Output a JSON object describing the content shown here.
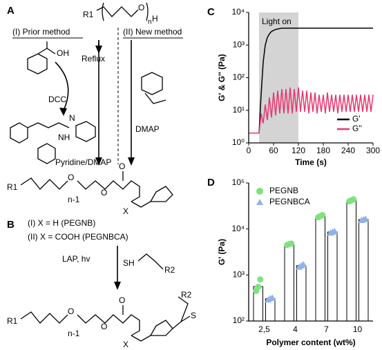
{
  "scheme": {
    "panel_a": "A",
    "panel_b": "B",
    "r1": "R1",
    "n": "n",
    "h": "H",
    "o": "O",
    "prior_method": "(I) Prior method",
    "new_method": "(II) New method",
    "reflux": "Reflux",
    "oh": "OH",
    "dcc": "DCC",
    "dmap": "DMAP",
    "pyridine_dmap": "Pyridine/DMAP",
    "n_minus_1": "n-1",
    "x": "X",
    "product_i": "(I) X = H (PEGNB)",
    "product_ii": "(II) X = COOH (PEGNBCA)",
    "lap": "LAP, hv",
    "sh": "SH",
    "r2": "R2",
    "s": "S",
    "nh": "NH",
    "nn": "N"
  },
  "chart_data": [
    {
      "type": "line",
      "panel": "C",
      "xlabel": "Time (s)",
      "ylabel": "G' & G'' (Pa)",
      "x": [
        0,
        5,
        10,
        15,
        20,
        25,
        30,
        35,
        40,
        45,
        50,
        55,
        60,
        65,
        70,
        75,
        80,
        85,
        90,
        95,
        100,
        105,
        110,
        115,
        120,
        125,
        130,
        135,
        140,
        145,
        150,
        155,
        160,
        165,
        170,
        175,
        180,
        185,
        190,
        195,
        200,
        205,
        210,
        215,
        220,
        225,
        230,
        235,
        240,
        245,
        250,
        255,
        260,
        265,
        270,
        275,
        280,
        285,
        290,
        295,
        300
      ],
      "xlim": [
        0,
        300
      ],
      "xticks": [
        0,
        60,
        120,
        180,
        240,
        300
      ],
      "ylim": [
        1,
        10000
      ],
      "log_y": true,
      "yticks": [
        {
          "value": 1,
          "label": "10⁰"
        },
        {
          "value": 10,
          "label": "10¹"
        },
        {
          "value": 100,
          "label": "10²"
        },
        {
          "value": 1000,
          "label": "10³"
        },
        {
          "value": 10000,
          "label": "10⁴"
        }
      ],
      "annotation": {
        "label": "Light on",
        "range": [
          25,
          120
        ]
      },
      "legend": "bottom-right",
      "series": [
        {
          "name": "G'",
          "color": "#000000",
          "values": [
            2,
            2,
            2,
            2,
            2,
            2,
            30,
            300,
            1000,
            1700,
            2200,
            2600,
            2800,
            3000,
            3100,
            3200,
            3300,
            3300,
            3300,
            3300,
            3300,
            3300,
            3300,
            3300,
            3300,
            3300,
            3300,
            3300,
            3300,
            3300,
            3300,
            3300,
            3300,
            3300,
            3300,
            3300,
            3300,
            3300,
            3300,
            3300,
            3300,
            3300,
            3300,
            3300,
            3300,
            3300,
            3300,
            3300,
            3300,
            3300,
            3300,
            3300,
            3300,
            3300,
            3300,
            3300,
            3300,
            3300,
            3300,
            3300,
            3300
          ]
        },
        {
          "name": "G''",
          "color": "#e8366e",
          "values": [
            2,
            2,
            2,
            2,
            2,
            2,
            8,
            4,
            15,
            5,
            25,
            6,
            35,
            7,
            40,
            8,
            45,
            8,
            45,
            8,
            50,
            8,
            45,
            9,
            50,
            9,
            40,
            9,
            40,
            8,
            35,
            9,
            35,
            8,
            30,
            9,
            30,
            8,
            35,
            9,
            30,
            9,
            30,
            8,
            30,
            9,
            30,
            9,
            30,
            9,
            30,
            9,
            30,
            9,
            30,
            9,
            30,
            9,
            30,
            9,
            30
          ]
        }
      ]
    },
    {
      "type": "bar",
      "panel": "D",
      "xlabel": "Polymer content (wt%)",
      "ylabel": "G' (Pa)",
      "categories": [
        "2,5",
        "4",
        "7",
        "10"
      ],
      "ylim": [
        100,
        100000
      ],
      "log_y": true,
      "yticks": [
        {
          "value": 100,
          "label": "10²"
        },
        {
          "value": 1000,
          "label": "10³"
        },
        {
          "value": 10000,
          "label": "10⁴"
        },
        {
          "value": 100000,
          "label": "10⁵"
        }
      ],
      "legend": "top-left",
      "series": [
        {
          "name": "PEGNB",
          "color": "#7ee27e",
          "marker": "circle",
          "values": [
            560,
            4650,
            19000,
            42000
          ],
          "replicates": [
            [
              450,
              550,
              800
            ],
            [
              4500,
              4700,
              4800
            ],
            [
              18000,
              19000,
              20000
            ],
            [
              40000,
              42000,
              44000
            ]
          ]
        },
        {
          "name": "PEGNBCA",
          "color": "#8fb3e8",
          "marker": "triangle",
          "values": [
            305,
            1600,
            8600,
            16000
          ],
          "replicates": [
            [
              290,
              310,
              320
            ],
            [
              1500,
              1600,
              1700
            ],
            [
              8200,
              8600,
              9000
            ],
            [
              15500,
              16000,
              16500
            ]
          ]
        }
      ]
    }
  ]
}
